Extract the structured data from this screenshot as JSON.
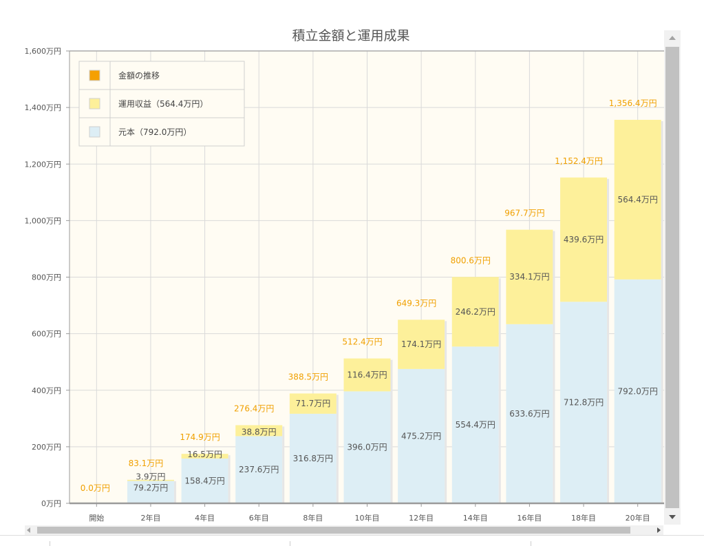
{
  "chart_data": {
    "type": "bar",
    "stacked": true,
    "title": "積立金額と運用成果",
    "categories": [
      "開始",
      "2年目",
      "4年目",
      "6年目",
      "8年目",
      "10年目",
      "12年目",
      "14年目",
      "16年目",
      "18年目",
      "20年目"
    ],
    "series": [
      {
        "name": "元本（792.0万円）",
        "color": "#ddeef5",
        "values": [
          0,
          79.2,
          158.4,
          237.6,
          316.8,
          396.0,
          475.2,
          554.4,
          633.6,
          712.8,
          792.0
        ],
        "labels": [
          "",
          "79.2万円",
          "158.4万円",
          "237.6万円",
          "316.8万円",
          "396.0万円",
          "475.2万円",
          "554.4万円",
          "633.6万円",
          "712.8万円",
          "792.0万円"
        ]
      },
      {
        "name": "運用収益（564.4万円）",
        "color": "#fdf09a",
        "values": [
          0,
          3.9,
          16.5,
          38.8,
          71.7,
          116.4,
          174.1,
          246.2,
          334.1,
          439.6,
          564.4
        ],
        "labels": [
          "",
          "3.9万円",
          "16.5万円",
          "38.8万円",
          "71.7万円",
          "116.4万円",
          "174.1万円",
          "246.2万円",
          "334.1万円",
          "439.6万円",
          "564.4万円"
        ]
      }
    ],
    "totals": {
      "color": "#f0a000",
      "values": [
        0.0,
        83.1,
        174.9,
        276.4,
        388.5,
        512.4,
        649.3,
        800.6,
        967.7,
        1152.4,
        1356.4
      ],
      "labels": [
        "0.0万円",
        "83.1万円",
        "174.9万円",
        "276.4万円",
        "388.5万円",
        "512.4万円",
        "649.3万円",
        "800.6万円",
        "967.7万円",
        "1,152.4万円",
        "1,356.4万円"
      ]
    },
    "legend": {
      "position": "top-left",
      "items": [
        {
          "label": "金額の推移",
          "color": "#f5a000"
        },
        {
          "label": "運用収益（564.4万円）",
          "color": "#fdf09a"
        },
        {
          "label": "元本（792.0万円）",
          "color": "#ddeef5"
        }
      ]
    },
    "ylim": [
      0,
      1600
    ],
    "yticks": [
      0,
      200,
      400,
      600,
      800,
      1000,
      1200,
      1400,
      1600
    ],
    "ytick_labels": [
      "0万円",
      "200万円",
      "400万円",
      "600万円",
      "800万円",
      "1,000万円",
      "1,200万円",
      "1,400万円",
      "1,600万円"
    ],
    "grid": true,
    "background_color": "#fffcf3"
  }
}
